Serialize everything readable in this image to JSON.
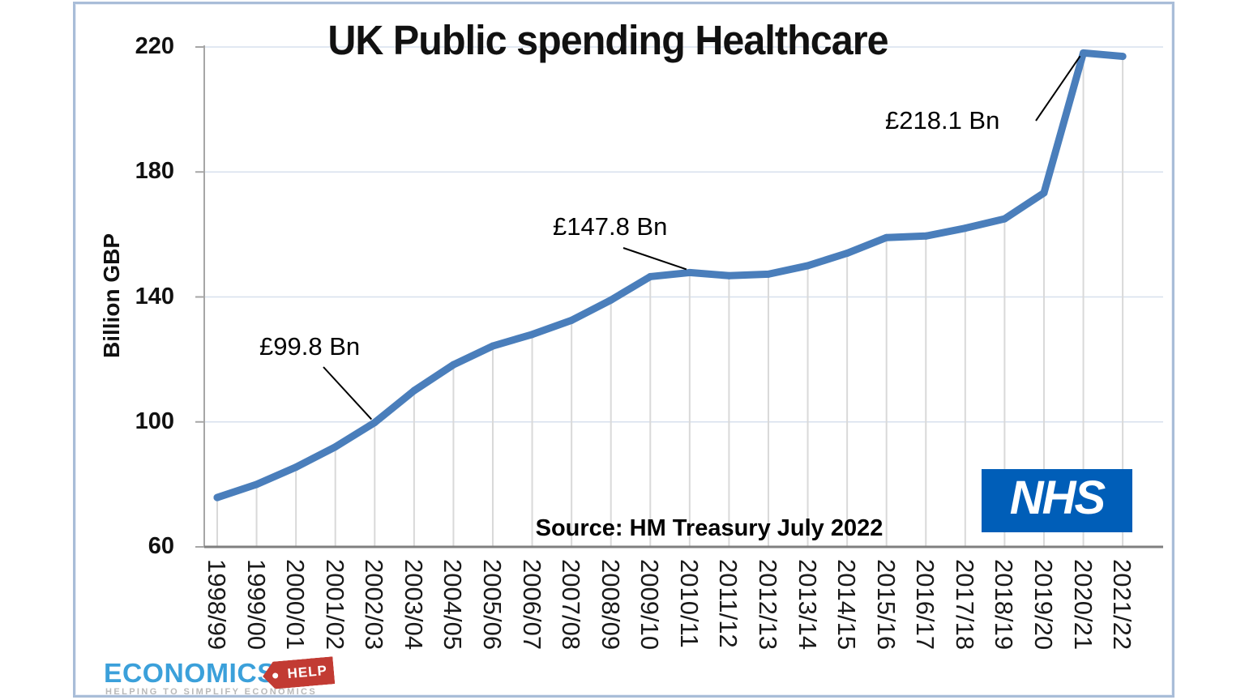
{
  "chart_data": {
    "type": "line",
    "title": "UK Public spending Healthcare",
    "xlabel": "",
    "ylabel": "Billion GBP",
    "source": "Source: HM Treasury July 2022",
    "categories": [
      "1998/99",
      "1999/00",
      "2000/01",
      "2001/02",
      "2002/03",
      "2003/04",
      "2004/05",
      "2005/06",
      "2006/07",
      "2007/08",
      "2008/09",
      "2009/10",
      "2010/11",
      "2011/12",
      "2012/13",
      "2013/14",
      "2014/15",
      "2015/16",
      "2016/17",
      "2017/18",
      "2018/19",
      "2019/20",
      "2020/21",
      "2021/22"
    ],
    "values": [
      75.8,
      80,
      85.5,
      92,
      99.8,
      110,
      118.3,
      124.3,
      128,
      132.5,
      139,
      146.5,
      147.8,
      146.8,
      147.3,
      150,
      154,
      159,
      159.5,
      162,
      165,
      173.3,
      218.1,
      217
    ],
    "ylim": [
      60,
      220
    ],
    "yticks": [
      60,
      100,
      140,
      180,
      220
    ],
    "grid": "horizontal",
    "legend": "none",
    "line_color": "#4a7ebb",
    "annotations": [
      {
        "label": "£99.8 Bn",
        "category": "2002/03",
        "value": 99.8
      },
      {
        "label": "£147.8 Bn",
        "category": "2010/11",
        "value": 147.8
      },
      {
        "label": "£218.1 Bn",
        "category": "2020/21",
        "value": 218.1
      }
    ]
  },
  "logos": {
    "nhs": {
      "text": "NHS",
      "bg_color": "#005eb8"
    },
    "economics_help": {
      "name": "ECONOMICS",
      "tag": "HELP",
      "tagline": "HELPING TO SIMPLIFY ECONOMICS",
      "name_color": "#3ba0da",
      "tag_color": "#c23b33"
    }
  }
}
